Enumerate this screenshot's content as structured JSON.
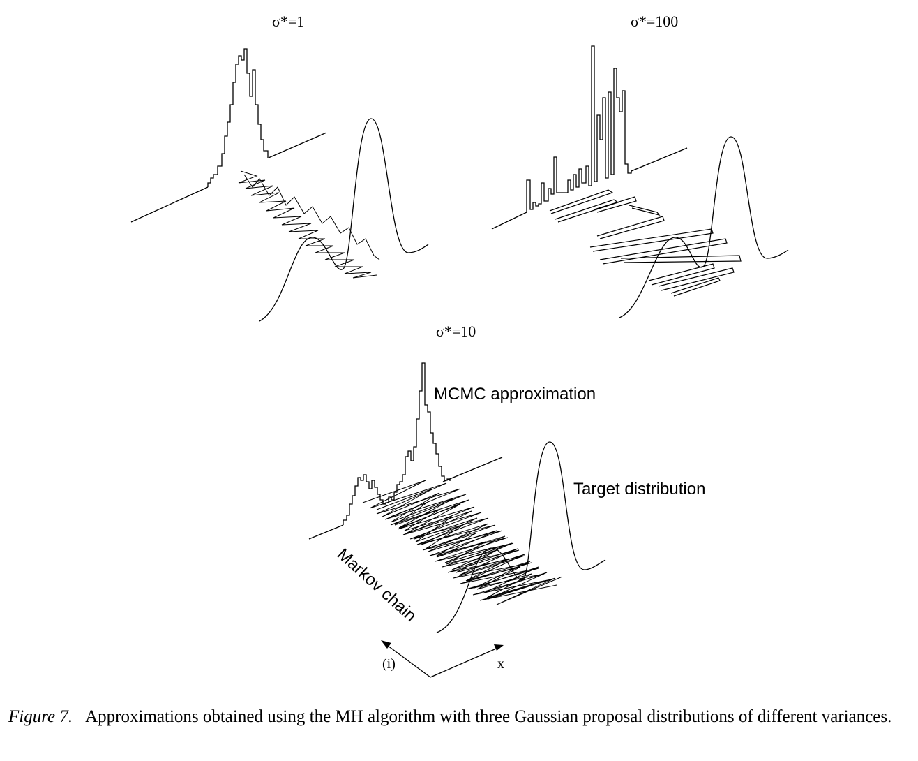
{
  "figure": {
    "panels": [
      {
        "id": "sigma1",
        "title": "σ*=1"
      },
      {
        "id": "sigma100",
        "title": "σ*=100"
      },
      {
        "id": "sigma10",
        "title": "σ*=10"
      }
    ],
    "annotations": {
      "mcmc": "MCMC approximation",
      "target": "Target distribution",
      "chain": "Markov chain"
    },
    "axes": {
      "iter_label": "(i)",
      "x_label": "x"
    }
  },
  "caption": {
    "figure_number": "Figure 7.",
    "text": "Approximations obtained using the MH algorithm with three Gaussian proposal distributions of different variances."
  }
}
